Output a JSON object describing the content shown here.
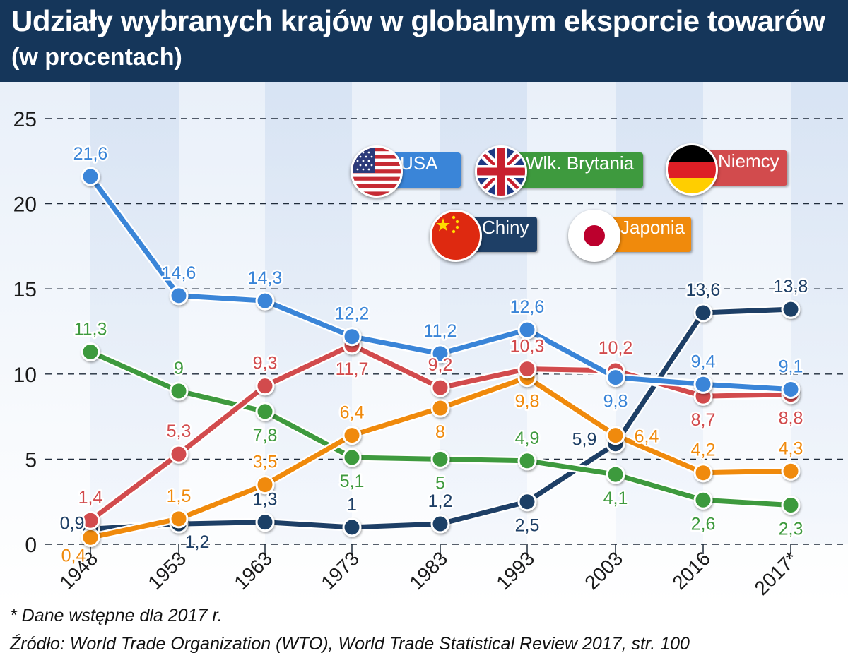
{
  "header": {
    "title": "Udziały wybranych krajów w globalnym eksporcie towarów",
    "subtitle": "(w procentach)"
  },
  "colors": {
    "header_bg": "#15365a",
    "USA": "#3a85d8",
    "Wlk. Brytania": "#3e9a3e",
    "Niemcy": "#d24b4d",
    "Chiny": "#1e3f66",
    "Japonia": "#f08a0c"
  },
  "legend": {
    "usa": {
      "label": "USA",
      "icon": "us-flag-icon"
    },
    "uk": {
      "label": "Wlk. Brytania",
      "icon": "uk-flag-icon"
    },
    "de": {
      "label": "Niemcy",
      "icon": "german-flag-icon"
    },
    "cn": {
      "label": "Chiny",
      "icon": "chinese-flag-icon"
    },
    "jp": {
      "label": "Japonia",
      "icon": "japanese-flag-icon"
    }
  },
  "chart_data": {
    "type": "line",
    "title": "Udziały wybranych krajów w globalnym eksporcie towarów",
    "subtitle": "(w procentach)",
    "categories": [
      "1948",
      "1953",
      "1963",
      "1973",
      "1983",
      "1993",
      "2003",
      "2016",
      "2017*"
    ],
    "y_ticks": [
      "0",
      "5",
      "10",
      "15",
      "20",
      "25"
    ],
    "ylim": [
      0,
      25
    ],
    "grid": true,
    "legend_position": "top-right",
    "series": [
      {
        "name": "USA",
        "values": [
          21.6,
          14.6,
          14.3,
          12.2,
          11.2,
          12.6,
          9.8,
          9.4,
          9.1
        ],
        "labels": [
          "21,6",
          "14,6",
          "14,3",
          "12,2",
          "11,2",
          "12,6",
          "9,8",
          "9,4",
          "9,1"
        ]
      },
      {
        "name": "Wlk. Brytania",
        "values": [
          11.3,
          9,
          7.8,
          5.1,
          5,
          4.9,
          4.1,
          2.6,
          2.3
        ],
        "labels": [
          "11,3",
          "9",
          "7,8",
          "5,1",
          "5",
          "4,9",
          "4,1",
          "2,6",
          "2,3"
        ]
      },
      {
        "name": "Niemcy",
        "values": [
          1.4,
          5.3,
          9.3,
          11.7,
          9.2,
          10.3,
          10.2,
          8.7,
          8.8
        ],
        "labels": [
          "1,4",
          "5,3",
          "9,3",
          "11,7",
          "9,2",
          "10,3",
          "10,2",
          "8,7",
          "8,8"
        ]
      },
      {
        "name": "Chiny",
        "values": [
          0.9,
          1.2,
          1.3,
          1,
          1.2,
          2.5,
          5.9,
          13.6,
          13.8
        ],
        "labels": [
          "0,9",
          "1,2",
          "1,3",
          "1",
          "1,2",
          "2,5",
          "5,9",
          "13,6",
          "13,8"
        ]
      },
      {
        "name": "Japonia",
        "values": [
          0.4,
          1.5,
          3.5,
          6.4,
          8,
          9.8,
          6.4,
          4.2,
          4.3
        ],
        "labels": [
          "0,4",
          "1,5",
          "3,5",
          "6,4",
          "8",
          "9,8",
          "6,4",
          "4,2",
          "4,3"
        ]
      }
    ]
  },
  "footnote": "* Dane wstępne dla 2017 r.",
  "source": "Źródło: World Trade Organization (WTO), World Trade Statistical Review 2017, str. 100"
}
